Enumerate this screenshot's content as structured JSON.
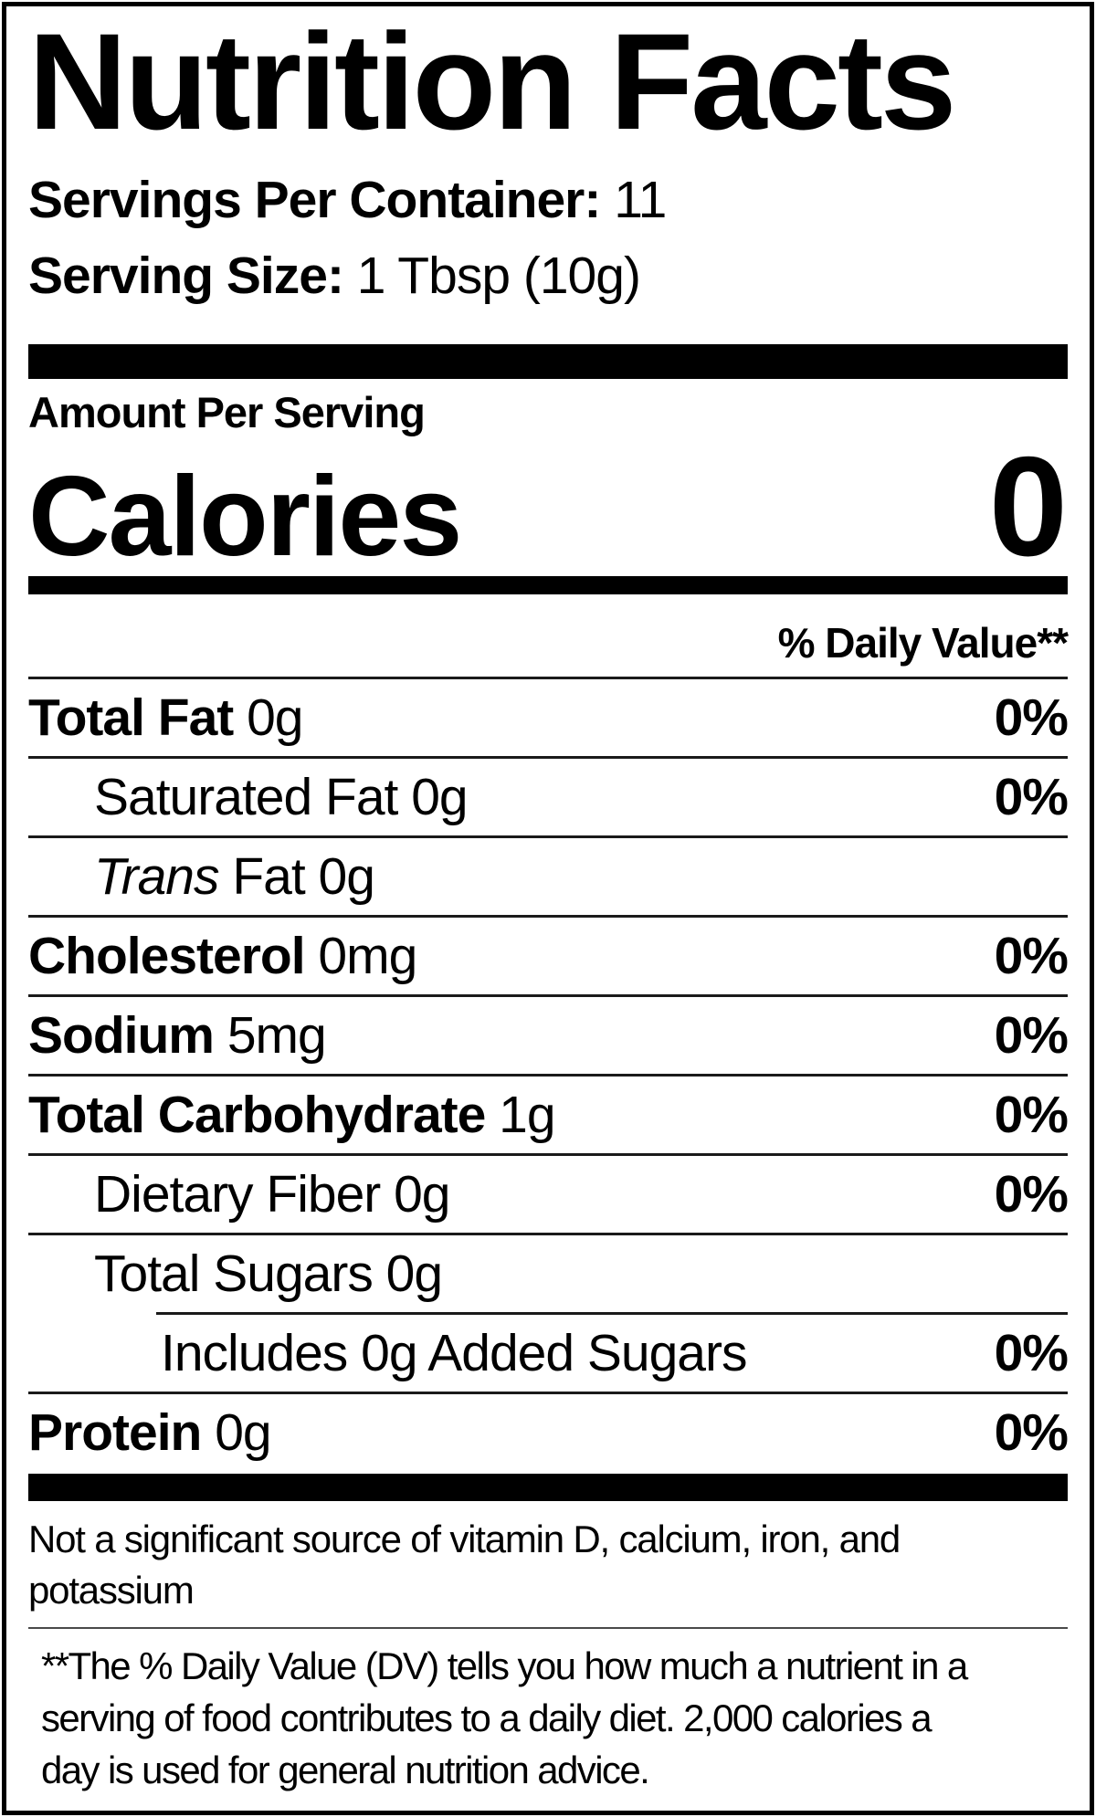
{
  "colors": {
    "ink": "#000000",
    "background": "#ffffff",
    "thin_rule": "#1a1a1a",
    "footnote_rule": "#4a4a4a"
  },
  "label": {
    "title": "Nutrition Facts",
    "servings_per_container": {
      "label": "Servings Per Container:",
      "value": "11"
    },
    "serving_size": {
      "label": "Serving Size:",
      "value": "1 Tbsp (10g)"
    },
    "amount_per_serving": "Amount Per Serving",
    "calories": {
      "label": "Calories",
      "value": "0"
    },
    "daily_value_header": "% Daily Value**",
    "rows": [
      {
        "bold": "Total Fat",
        "text": " 0g",
        "dv": "0%",
        "indent": 0
      },
      {
        "text": "Saturated Fat 0g",
        "dv": "0%",
        "indent": 1
      },
      {
        "italic": "Trans",
        "text": " Fat 0g",
        "dv": "",
        "indent": 1
      },
      {
        "bold": "Cholesterol",
        "text": " 0mg",
        "dv": "0%",
        "indent": 0
      },
      {
        "bold": "Sodium",
        "text": " 5mg",
        "dv": "0%",
        "indent": 0
      },
      {
        "bold": "Total Carbohydrate",
        "text": " 1g",
        "dv": "0%",
        "indent": 0
      },
      {
        "text": "Dietary Fiber 0g",
        "dv": "0%",
        "indent": 1
      },
      {
        "text": "Total Sugars 0g",
        "dv": "",
        "indent": 1,
        "no_rule": true
      },
      {
        "text": "Includes 0g Added Sugars",
        "dv": "0%",
        "indent": 2,
        "rule_above": true
      },
      {
        "bold": "Protein",
        "text": " 0g",
        "dv": "0%",
        "indent": 0,
        "no_rule": true
      }
    ],
    "not_significant_lines": [
      "Not a significant source of vitamin D, calcium, iron, and",
      "potassium"
    ],
    "footnote_lines": [
      "**The % Daily Value (DV) tells you how much a nutrient in a",
      "serving of food contributes to a daily diet. 2,000 calories a",
      "day is used for general nutrition advice."
    ]
  }
}
